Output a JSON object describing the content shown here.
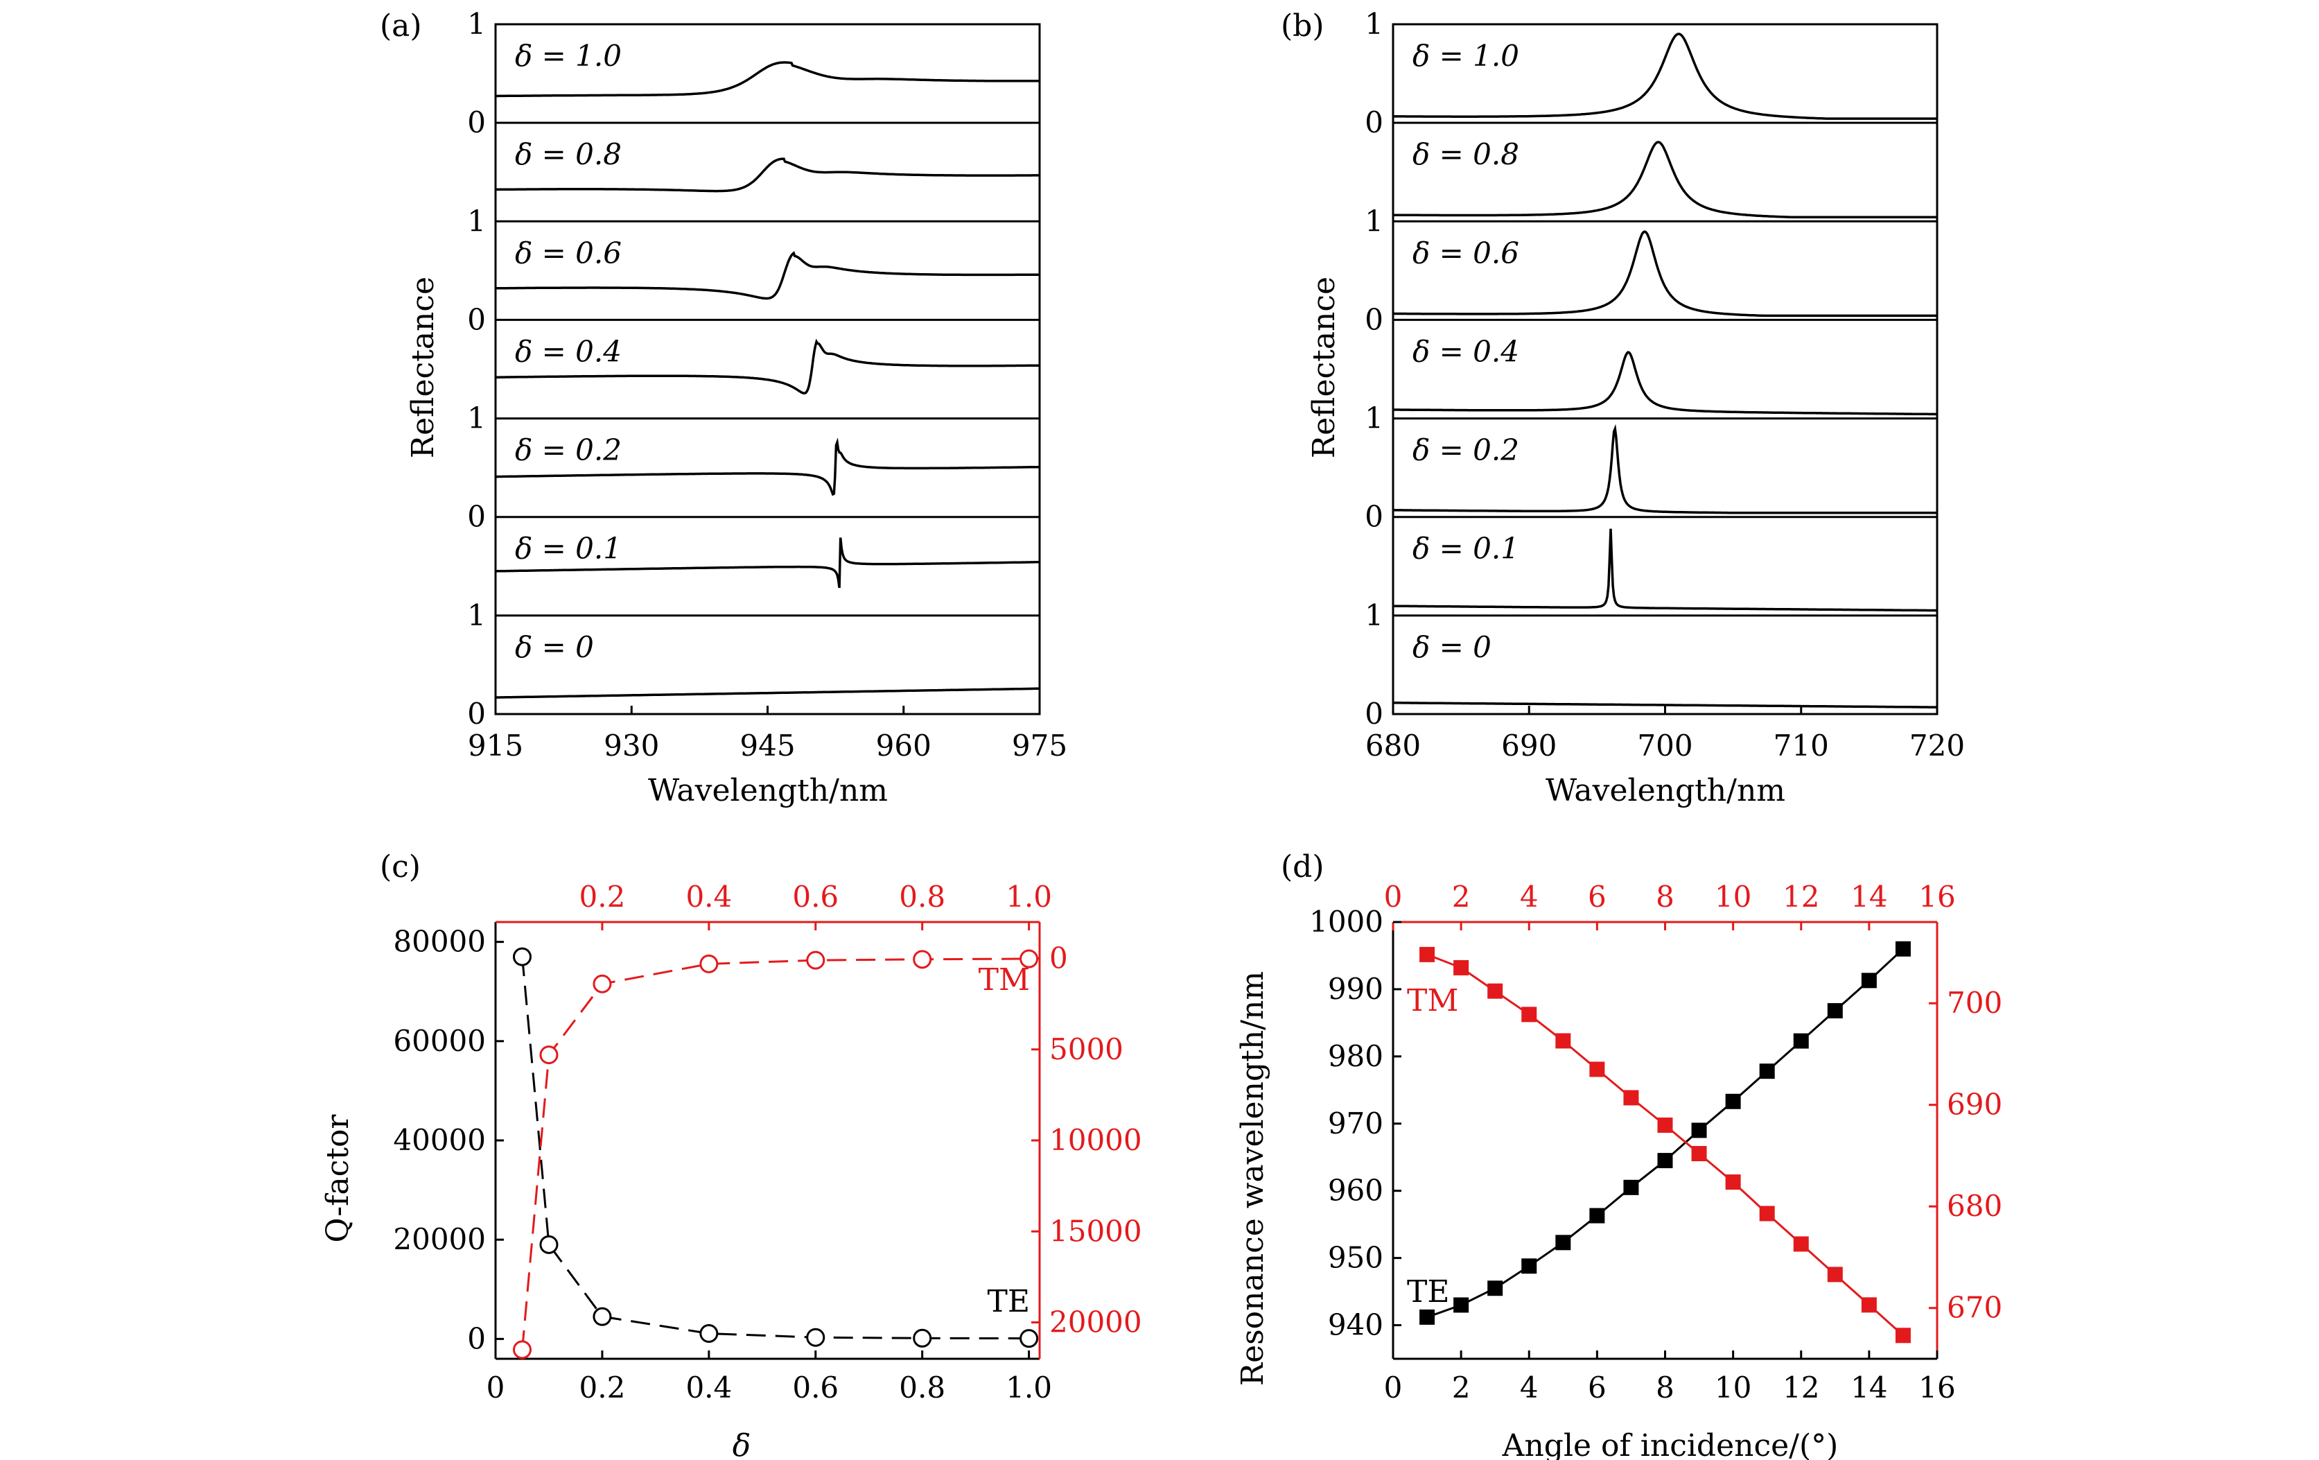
{
  "colors": {
    "te": "#000000",
    "tm": "#e31a1c"
  },
  "panels": {
    "a": {
      "label": "(a)",
      "xlabel": "Wavelength/nm",
      "ylabel": "Reflectance",
      "xlim": [
        915,
        975
      ],
      "xticks": [
        915,
        930,
        945,
        960,
        975
      ]
    },
    "b": {
      "label": "(b)",
      "xlabel": "Wavelength/nm",
      "ylabel": "Reflectance",
      "xlim": [
        680,
        720
      ],
      "xticks": [
        680,
        690,
        700,
        710,
        720
      ]
    },
    "c": {
      "label": "(c)",
      "xlabel": "δ",
      "ylabel": "Q-factor",
      "te_label": "TE",
      "tm_label": "TM"
    },
    "d": {
      "label": "(d)",
      "xlabel": "Angle of incidence/(°)",
      "ylabel": "Resonance wavelength/nm",
      "te_label": "TE",
      "tm_label": "TM"
    }
  },
  "chart_data": [
    {
      "panel": "a",
      "type": "line",
      "title": "",
      "xlabel": "Wavelength/nm",
      "ylabel": "Reflectance",
      "xlim": [
        915,
        975
      ],
      "ylim": [
        0,
        1
      ],
      "stack_tick_labels": [
        "1",
        "0",
        "1",
        "0",
        "1",
        "0",
        "1",
        "0"
      ],
      "series": [
        {
          "name": "δ = 1.0",
          "baseline": 0.12,
          "peak": 945,
          "peak_height": 0.94,
          "width": 4.5,
          "asym": 0.6
        },
        {
          "name": "δ = 0.8",
          "baseline": 0.16,
          "peak": 945,
          "peak_height": 0.93,
          "width": 3.0,
          "asym": 0.7
        },
        {
          "name": "δ = 0.6",
          "baseline": 0.09,
          "peak": 947,
          "peak_height": 0.95,
          "width": 1.6,
          "asym": 0.85
        },
        {
          "name": "δ = 0.4",
          "baseline": 0.18,
          "peak": 950,
          "peak_height": 0.93,
          "width": 0.8,
          "asym": 1.0
        },
        {
          "name": "δ = 0.2",
          "baseline": 0.14,
          "peak": 952.5,
          "peak_height": 0.95,
          "width": 0.2,
          "asym": 1.0
        },
        {
          "name": "δ = 0.1",
          "baseline": 0.2,
          "peak": 953,
          "peak_height": 0.96,
          "width": 0.06,
          "asym": 1.0
        },
        {
          "name": "δ = 0",
          "baseline": 0.14,
          "peak": null,
          "peak_height": 0,
          "width": 0,
          "asym": 0
        }
      ]
    },
    {
      "panel": "b",
      "type": "line",
      "title": "",
      "xlabel": "Wavelength/nm",
      "ylabel": "Reflectance",
      "xlim": [
        680,
        720
      ],
      "ylim": [
        0,
        1
      ],
      "stack_tick_labels": [
        "1",
        "0",
        "1",
        "0",
        "1",
        "0",
        "1",
        "0"
      ],
      "series": [
        {
          "name": "δ = 1.0",
          "baseline": 0.02,
          "peak": 701,
          "peak_height": 0.98,
          "width": 1.6
        },
        {
          "name": "δ = 0.8",
          "baseline": 0.02,
          "peak": 699.5,
          "peak_height": 0.87,
          "width": 1.4
        },
        {
          "name": "δ = 0.6",
          "baseline": 0.02,
          "peak": 698.5,
          "peak_height": 0.97,
          "width": 1.1
        },
        {
          "name": "δ = 0.4",
          "baseline": 0.05,
          "peak": 697.3,
          "peak_height": 0.72,
          "width": 0.8
        },
        {
          "name": "δ = 0.2",
          "baseline": 0.03,
          "peak": 696.3,
          "peak_height": 0.97,
          "width": 0.3
        },
        {
          "name": "δ = 0.1",
          "baseline": 0.06,
          "peak": 696,
          "peak_height": 0.95,
          "width": 0.1
        },
        {
          "name": "δ = 0",
          "baseline": 0.08,
          "peak": null,
          "peak_height": 0,
          "width": 0
        }
      ]
    },
    {
      "panel": "c",
      "type": "scatter",
      "title": "",
      "xlabel": "δ",
      "ylabel": "Q-factor",
      "xlim": [
        0,
        1.02
      ],
      "ylim": [
        -4000,
        84000
      ],
      "xticks": [
        0,
        0.2,
        0.4,
        0.6,
        0.8,
        1.0
      ],
      "yticks": [
        0,
        20000,
        40000,
        60000,
        80000
      ],
      "y2lim": [
        22000,
        -2000
      ],
      "y2ticks": [
        0,
        5000,
        10000,
        15000,
        20000
      ],
      "series": [
        {
          "name": "TE",
          "axis": "left",
          "x": [
            0.05,
            0.1,
            0.2,
            0.4,
            0.6,
            0.8,
            1.0
          ],
          "values": [
            77000,
            19000,
            4500,
            1100,
            300,
            150,
            100
          ]
        },
        {
          "name": "TM",
          "axis": "right",
          "x": [
            0.05,
            0.1,
            0.2,
            0.4,
            0.6,
            0.8,
            1.0
          ],
          "values": [
            21500,
            5300,
            1400,
            300,
            100,
            50,
            20
          ]
        }
      ]
    },
    {
      "panel": "d",
      "type": "line",
      "title": "",
      "xlabel": "Angle of incidence/(°)",
      "ylabel": "Resonance wavelength/nm",
      "xlim": [
        0,
        16
      ],
      "ylim": [
        935,
        1000
      ],
      "xticks": [
        0,
        2,
        4,
        6,
        8,
        10,
        12,
        14,
        16
      ],
      "yticks": [
        940,
        950,
        960,
        970,
        980,
        990,
        1000
      ],
      "y2lim": [
        665,
        708
      ],
      "y2ticks": [
        670,
        680,
        690,
        700
      ],
      "series": [
        {
          "name": "TE",
          "axis": "left",
          "x": [
            1,
            2,
            3,
            4,
            5,
            6,
            7,
            8,
            9,
            10,
            11,
            12,
            13,
            14,
            15
          ],
          "values": [
            941.2,
            943,
            945.5,
            948.8,
            952.3,
            956.3,
            960.5,
            964.5,
            969,
            973.3,
            977.8,
            982.3,
            986.8,
            991.3,
            996
          ]
        },
        {
          "name": "TM",
          "axis": "right",
          "x": [
            1,
            2,
            3,
            4,
            5,
            6,
            7,
            8,
            9,
            10,
            11,
            12,
            13,
            14,
            15
          ],
          "values": [
            704.8,
            703.5,
            701.2,
            698.9,
            696.3,
            693.5,
            690.7,
            688,
            685.2,
            682.4,
            679.3,
            676.3,
            673.3,
            670.3,
            667.3
          ]
        }
      ]
    }
  ]
}
